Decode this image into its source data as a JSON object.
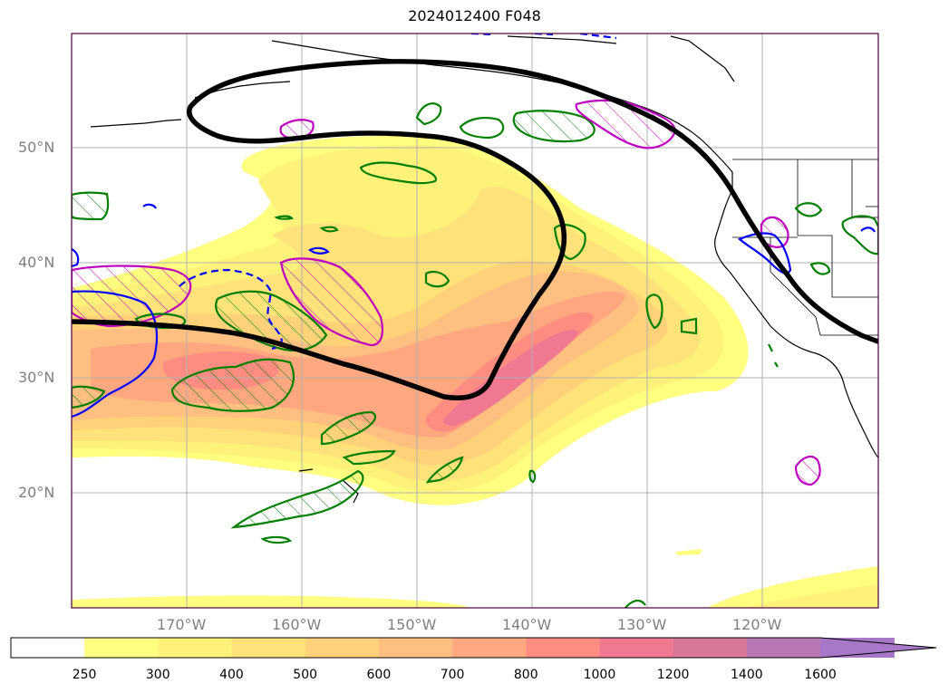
{
  "title": "2024012400 F048",
  "lat_labels": [
    "50°N",
    "40°N",
    "30°N",
    "20°N"
  ],
  "lon_labels": [
    "170°W",
    "160°W",
    "150°W",
    "140°W",
    "130°W",
    "120°W"
  ],
  "colorbar": {
    "ticks": [
      "250",
      "300",
      "400",
      "500",
      "600",
      "700",
      "800",
      "1000",
      "1200",
      "1400",
      "1600"
    ],
    "colors": [
      "#ffffff",
      "#ffff80",
      "#fff27a",
      "#ffe27a",
      "#ffd27a",
      "#ffbf80",
      "#ffa880",
      "#ff8c80",
      "#f07890",
      "#d7789a",
      "#b878b5",
      "#a878c8"
    ],
    "extend": "max"
  },
  "map": {
    "projection": "PlateCarree",
    "extent_lon": [
      -180,
      -110
    ],
    "extent_lat": [
      10,
      60
    ],
    "grid": true,
    "contour_colors": {
      "thick_line": "#000000",
      "green": "#008000",
      "blue": "#0000ff",
      "magenta": "#c000c0"
    }
  }
}
